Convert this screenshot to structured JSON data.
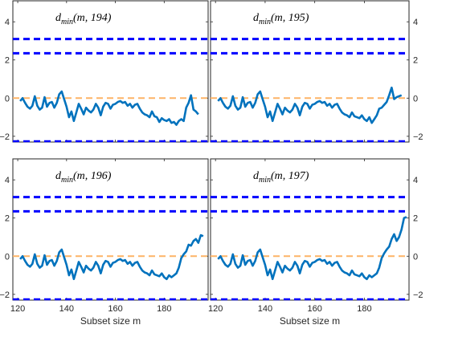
{
  "chart_data": [
    {
      "type": "line",
      "title_main": "d",
      "title_sub": "min",
      "title_args": "(m, 194)",
      "xlim": [
        118,
        198
      ],
      "ylim": [
        -2.3,
        5.1
      ],
      "xticks": [
        120,
        140,
        160,
        180
      ],
      "yticks": [
        -2,
        0,
        2,
        4
      ],
      "xlabel": "",
      "show_xticklabels": false,
      "ylabel_side": "left",
      "colors": {
        "series": "#0072BD",
        "upper": "#0000FF",
        "zero": "#FDB366"
      },
      "reference_lines": {
        "upper": [
          3.1,
          2.35
        ],
        "zero": 0,
        "lower": -2.3
      },
      "series": [
        {
          "x": [
            121,
            122,
            123,
            124,
            125,
            126,
            127,
            128,
            129,
            130,
            131,
            132,
            133,
            134,
            135,
            136,
            137,
            138,
            139,
            140,
            141,
            142,
            143,
            144,
            145,
            146,
            147,
            148,
            149,
            150,
            151,
            152,
            153,
            154,
            155,
            156,
            157,
            158,
            159,
            160,
            161,
            162,
            163,
            164,
            165,
            166,
            167,
            168,
            169,
            170,
            171,
            172,
            173,
            174,
            175,
            176,
            177,
            178,
            179,
            180,
            181,
            182,
            183,
            184,
            185,
            186,
            187,
            188,
            189,
            190,
            191,
            192,
            193,
            194
          ],
          "y": [
            -0.15,
            0,
            -0.25,
            -0.45,
            -0.55,
            -0.4,
            0.1,
            -0.4,
            -0.6,
            -0.5,
            0.05,
            -0.45,
            -0.25,
            -0.2,
            -0.5,
            -0.25,
            0.2,
            0.35,
            -0.05,
            -0.45,
            -1,
            -0.7,
            -1.2,
            -0.75,
            -0.3,
            -0.55,
            -0.85,
            -0.5,
            -0.65,
            -0.75,
            -0.6,
            -0.3,
            -0.5,
            -0.9,
            -0.45,
            -0.25,
            -0.3,
            -0.55,
            -0.35,
            -0.3,
            -0.2,
            -0.15,
            -0.25,
            -0.2,
            -0.4,
            -0.3,
            -0.5,
            -0.35,
            -0.3,
            -0.55,
            -0.75,
            -0.85,
            -0.9,
            -1,
            -0.7,
            -0.95,
            -1,
            -1.25,
            -1.05,
            -1.15,
            -1.2,
            -1.1,
            -1.3,
            -1.25,
            -1.4,
            -1.2,
            -1.1,
            -1.2,
            -0.5,
            -0.25,
            0.15,
            -0.6,
            -0.7,
            -0.85
          ]
        }
      ]
    },
    {
      "type": "line",
      "title_main": "d",
      "title_sub": "min",
      "title_args": "(m, 195)",
      "xlim": [
        118,
        198
      ],
      "ylim": [
        -2.3,
        5.1
      ],
      "xticks": [
        120,
        140,
        160,
        180
      ],
      "yticks": [
        -2,
        0,
        2,
        4
      ],
      "xlabel": "",
      "show_xticklabels": false,
      "ylabel_side": "right",
      "colors": {
        "series": "#0072BD",
        "upper": "#0000FF",
        "zero": "#FDB366"
      },
      "reference_lines": {
        "upper": [
          3.1,
          2.35
        ],
        "zero": 0,
        "lower": -2.3
      },
      "series": [
        {
          "x": [
            121,
            122,
            123,
            124,
            125,
            126,
            127,
            128,
            129,
            130,
            131,
            132,
            133,
            134,
            135,
            136,
            137,
            138,
            139,
            140,
            141,
            142,
            143,
            144,
            145,
            146,
            147,
            148,
            149,
            150,
            151,
            152,
            153,
            154,
            155,
            156,
            157,
            158,
            159,
            160,
            161,
            162,
            163,
            164,
            165,
            166,
            167,
            168,
            169,
            170,
            171,
            172,
            173,
            174,
            175,
            176,
            177,
            178,
            179,
            180,
            181,
            182,
            183,
            184,
            185,
            186,
            187,
            188,
            189,
            190,
            191,
            192,
            193,
            194,
            195
          ],
          "y": [
            -0.15,
            0,
            -0.25,
            -0.45,
            -0.55,
            -0.4,
            0.1,
            -0.4,
            -0.6,
            -0.5,
            0.05,
            -0.45,
            -0.25,
            -0.2,
            -0.5,
            -0.25,
            0.2,
            0.35,
            -0.05,
            -0.45,
            -1,
            -0.7,
            -1.2,
            -0.75,
            -0.3,
            -0.55,
            -0.85,
            -0.5,
            -0.65,
            -0.75,
            -0.6,
            -0.3,
            -0.5,
            -0.9,
            -0.45,
            -0.25,
            -0.3,
            -0.55,
            -0.35,
            -0.3,
            -0.2,
            -0.15,
            -0.25,
            -0.2,
            -0.4,
            -0.3,
            -0.5,
            -0.35,
            -0.3,
            -0.55,
            -0.75,
            -0.85,
            -0.9,
            -1,
            -0.75,
            -0.95,
            -1,
            -1.05,
            -0.9,
            -1.1,
            -1.2,
            -1,
            -1.3,
            -1.1,
            -0.9,
            -0.55,
            -0.5,
            -0.35,
            -0.2,
            0.15,
            0.55,
            -0.05,
            0.05,
            0.1,
            0.15
          ]
        }
      ]
    },
    {
      "type": "line",
      "title_main": "d",
      "title_sub": "min",
      "title_args": "(m, 196)",
      "xlim": [
        118,
        198
      ],
      "ylim": [
        -2.3,
        5.1
      ],
      "xticks": [
        120,
        140,
        160,
        180
      ],
      "yticks": [
        -2,
        0,
        2,
        4
      ],
      "xlabel": "Subset size m",
      "show_xticklabels": true,
      "ylabel_side": "left",
      "colors": {
        "series": "#0072BD",
        "upper": "#0000FF",
        "zero": "#FDB366"
      },
      "reference_lines": {
        "upper": [
          3.1,
          2.35
        ],
        "zero": 0,
        "lower": -2.3
      },
      "series": [
        {
          "x": [
            121,
            122,
            123,
            124,
            125,
            126,
            127,
            128,
            129,
            130,
            131,
            132,
            133,
            134,
            135,
            136,
            137,
            138,
            139,
            140,
            141,
            142,
            143,
            144,
            145,
            146,
            147,
            148,
            149,
            150,
            151,
            152,
            153,
            154,
            155,
            156,
            157,
            158,
            159,
            160,
            161,
            162,
            163,
            164,
            165,
            166,
            167,
            168,
            169,
            170,
            171,
            172,
            173,
            174,
            175,
            176,
            177,
            178,
            179,
            180,
            181,
            182,
            183,
            184,
            185,
            186,
            187,
            188,
            189,
            190,
            191,
            192,
            193,
            194,
            195,
            196
          ],
          "y": [
            -0.15,
            0,
            -0.25,
            -0.45,
            -0.55,
            -0.4,
            0.1,
            -0.4,
            -0.6,
            -0.5,
            0.05,
            -0.45,
            -0.25,
            -0.2,
            -0.5,
            -0.25,
            0.2,
            0.35,
            -0.05,
            -0.45,
            -1,
            -0.7,
            -1.2,
            -0.75,
            -0.3,
            -0.55,
            -0.85,
            -0.5,
            -0.65,
            -0.75,
            -0.6,
            -0.3,
            -0.5,
            -0.9,
            -0.45,
            -0.25,
            -0.3,
            -0.55,
            -0.35,
            -0.3,
            -0.2,
            -0.15,
            -0.25,
            -0.2,
            -0.4,
            -0.3,
            -0.5,
            -0.35,
            -0.3,
            -0.55,
            -0.75,
            -0.85,
            -0.9,
            -1,
            -0.75,
            -0.95,
            -1,
            -1.05,
            -0.9,
            -1.1,
            -1.2,
            -1,
            -1.1,
            -1.0,
            -0.9,
            -0.6,
            -0.1,
            0.1,
            0.25,
            0.6,
            0.55,
            0.8,
            0.9,
            0.7,
            1.1,
            1.05
          ]
        }
      ]
    },
    {
      "type": "line",
      "title_main": "d",
      "title_sub": "min",
      "title_args": "(m, 197)",
      "xlim": [
        118,
        198
      ],
      "ylim": [
        -2.3,
        5.1
      ],
      "xticks": [
        120,
        140,
        160,
        180
      ],
      "yticks": [
        -2,
        0,
        2,
        4
      ],
      "xlabel": "Subset size m",
      "show_xticklabels": true,
      "ylabel_side": "right",
      "colors": {
        "series": "#0072BD",
        "upper": "#0000FF",
        "zero": "#FDB366"
      },
      "reference_lines": {
        "upper": [
          3.1,
          2.35
        ],
        "zero": 0,
        "lower": -2.3
      },
      "series": [
        {
          "x": [
            121,
            122,
            123,
            124,
            125,
            126,
            127,
            128,
            129,
            130,
            131,
            132,
            133,
            134,
            135,
            136,
            137,
            138,
            139,
            140,
            141,
            142,
            143,
            144,
            145,
            146,
            147,
            148,
            149,
            150,
            151,
            152,
            153,
            154,
            155,
            156,
            157,
            158,
            159,
            160,
            161,
            162,
            163,
            164,
            165,
            166,
            167,
            168,
            169,
            170,
            171,
            172,
            173,
            174,
            175,
            176,
            177,
            178,
            179,
            180,
            181,
            182,
            183,
            184,
            185,
            186,
            187,
            188,
            189,
            190,
            191,
            192,
            193,
            194,
            195,
            196,
            197
          ],
          "y": [
            -0.15,
            0,
            -0.25,
            -0.45,
            -0.55,
            -0.4,
            0.1,
            -0.4,
            -0.6,
            -0.5,
            0.05,
            -0.45,
            -0.25,
            -0.2,
            -0.5,
            -0.25,
            0.2,
            0.35,
            -0.05,
            -0.45,
            -1,
            -0.7,
            -1.2,
            -0.75,
            -0.3,
            -0.55,
            -0.85,
            -0.5,
            -0.65,
            -0.75,
            -0.6,
            -0.3,
            -0.5,
            -0.9,
            -0.45,
            -0.25,
            -0.3,
            -0.55,
            -0.35,
            -0.3,
            -0.2,
            -0.15,
            -0.25,
            -0.2,
            -0.4,
            -0.3,
            -0.5,
            -0.35,
            -0.3,
            -0.55,
            -0.75,
            -0.85,
            -0.9,
            -1,
            -0.75,
            -0.95,
            -1,
            -1.05,
            -0.9,
            -1.1,
            -1.2,
            -1,
            -1.1,
            -1.0,
            -0.9,
            -0.6,
            -0.1,
            0.15,
            0.35,
            0.5,
            0.9,
            1.15,
            0.8,
            1.0,
            1.4,
            2.0,
            2.05
          ]
        }
      ]
    }
  ]
}
